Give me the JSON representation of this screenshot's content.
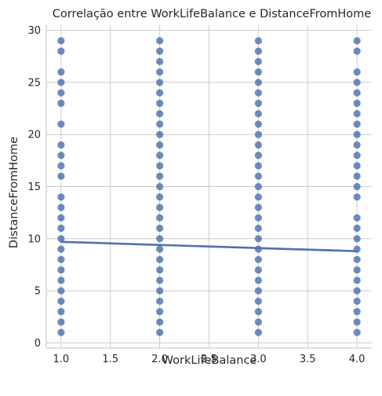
{
  "chart_data": {
    "type": "scatter",
    "title": "Correlação entre WorkLifeBalance e DistanceFromHome",
    "xlabel": "WorkLifeBalance",
    "ylabel": "DistanceFromHome",
    "xlim": [
      0.85,
      4.15
    ],
    "ylim": [
      -0.5,
      30.5
    ],
    "x_ticks": [
      "1.0",
      "1.5",
      "2.0",
      "2.5",
      "3.0",
      "3.5",
      "4.0"
    ],
    "x_tick_values": [
      1.0,
      1.5,
      2.0,
      2.5,
      3.0,
      3.5,
      4.0
    ],
    "y_ticks": [
      "0",
      "5",
      "10",
      "15",
      "20",
      "25",
      "30"
    ],
    "y_tick_values": [
      0,
      5,
      10,
      15,
      20,
      25,
      30
    ],
    "grid": true,
    "point_color": "#4c72b0",
    "line_color": "#4c72b0",
    "series": [
      {
        "x": 1.0,
        "y_values": [
          1,
          2,
          3,
          4,
          5,
          6,
          7,
          8,
          9,
          10,
          11,
          12,
          13,
          14,
          16,
          17,
          18,
          19,
          21,
          23,
          24,
          25,
          26,
          28,
          29
        ]
      },
      {
        "x": 2.0,
        "y_values": [
          1,
          2,
          3,
          4,
          5,
          6,
          7,
          8,
          9,
          10,
          11,
          12,
          13,
          14,
          15,
          16,
          17,
          18,
          19,
          20,
          21,
          22,
          23,
          24,
          25,
          26,
          27,
          28,
          29
        ]
      },
      {
        "x": 3.0,
        "y_values": [
          1,
          2,
          3,
          4,
          5,
          6,
          7,
          8,
          9,
          10,
          11,
          12,
          13,
          14,
          15,
          16,
          17,
          18,
          19,
          20,
          21,
          22,
          23,
          24,
          25,
          26,
          27,
          28,
          29
        ]
      },
      {
        "x": 4.0,
        "y_values": [
          1,
          2,
          3,
          4,
          5,
          6,
          7,
          8,
          9,
          10,
          11,
          12,
          14,
          15,
          16,
          17,
          18,
          19,
          20,
          21,
          22,
          23,
          24,
          25,
          26,
          28,
          29
        ]
      }
    ],
    "regression_line": {
      "x": [
        1.0,
        4.0
      ],
      "y": [
        9.7,
        8.8
      ]
    }
  }
}
